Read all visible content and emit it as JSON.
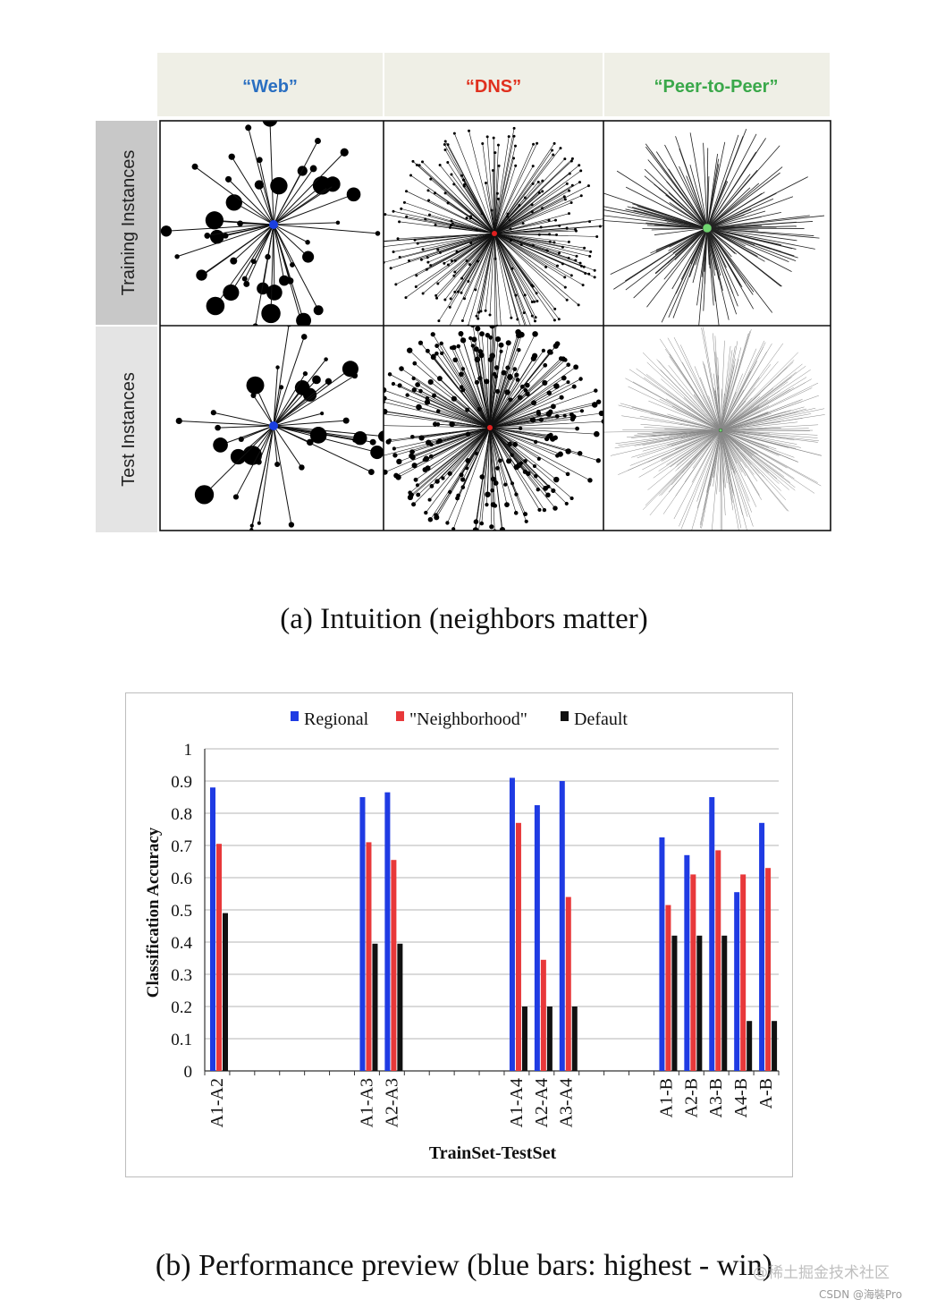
{
  "figure_a": {
    "columns": [
      {
        "label": "“Web”",
        "color": "#2a6fc1",
        "hub_color": "#1a3fe0"
      },
      {
        "label": "“DNS”",
        "color": "#e0301e",
        "hub_color": "#e02020"
      },
      {
        "label": "“Peer-to-Peer”",
        "color": "#3aa84a",
        "hub_color": "#6fd46f"
      }
    ],
    "rows": [
      {
        "label": "Training Instances"
      },
      {
        "label": "Test Instances"
      }
    ],
    "caption": "(a) Intuition (neighbors matter)"
  },
  "chart_data": {
    "type": "bar",
    "title": "",
    "xlabel": "TrainSet-TestSet",
    "ylabel": "Classification Accuracy",
    "ylim": [
      0,
      1
    ],
    "yticks": [
      "0",
      "0.1",
      "0.2",
      "0.3",
      "0.4",
      "0.5",
      "0.6",
      "0.7",
      "0.8",
      "0.9",
      "1"
    ],
    "legend": "top-center",
    "categories": [
      "A1-A2",
      "",
      "",
      "",
      "",
      "",
      "A1-A3",
      "A2-A3",
      "",
      "",
      "",
      "",
      "A1-A4",
      "A2-A4",
      "A3-A4",
      "",
      "",
      "",
      "A1-B",
      "A2-B",
      "A3-B",
      "A4-B",
      "A-B"
    ],
    "series": [
      {
        "name": "Regional",
        "color": "#1f3be3",
        "values": [
          0.88,
          null,
          null,
          null,
          null,
          null,
          0.85,
          0.865,
          null,
          null,
          null,
          null,
          0.91,
          0.825,
          0.9,
          null,
          null,
          null,
          0.725,
          0.67,
          0.85,
          0.555,
          0.77
        ]
      },
      {
        "name": "\"Neighborhood\"",
        "color": "#e8383a",
        "values": [
          0.705,
          null,
          null,
          null,
          null,
          null,
          0.71,
          0.655,
          null,
          null,
          null,
          null,
          0.77,
          0.345,
          0.54,
          null,
          null,
          null,
          0.515,
          0.61,
          0.685,
          0.61,
          0.63
        ]
      },
      {
        "name": "Default",
        "color": "#111111",
        "values": [
          0.49,
          null,
          null,
          null,
          null,
          null,
          0.395,
          0.395,
          null,
          null,
          null,
          null,
          0.2,
          0.2,
          0.2,
          null,
          null,
          null,
          0.42,
          0.42,
          0.42,
          0.155,
          0.155
        ]
      }
    ]
  },
  "figure_b": {
    "caption": "(b) Performance preview (blue bars: highest - win)"
  },
  "watermark": {
    "line1": "@稀土掘金技术社区",
    "line2": "CSDN @海裝Pro"
  }
}
